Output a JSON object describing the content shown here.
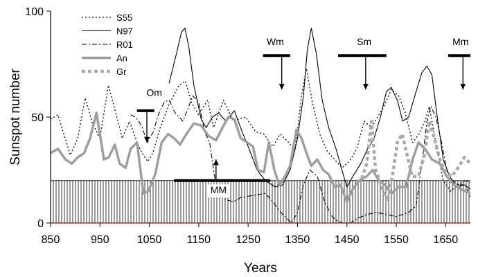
{
  "chart_data": {
    "type": "line",
    "xlabel": "Years",
    "ylabel": "Sunspot number",
    "xlim": [
      850,
      1700
    ],
    "ylim": [
      0,
      100
    ],
    "x_ticks": [
      850,
      950,
      1050,
      1150,
      1250,
      1350,
      1450,
      1550,
      1650
    ],
    "y_ticks": [
      0,
      50,
      100
    ],
    "legend_position": "top-left",
    "hatched_band": [
      0,
      20
    ],
    "series": [
      {
        "name": "S55",
        "style": "dotted",
        "color": "#000000",
        "points": [
          [
            850,
            49
          ],
          [
            865,
            51
          ],
          [
            878,
            41
          ],
          [
            890,
            32
          ],
          [
            905,
            40
          ],
          [
            920,
            59
          ],
          [
            935,
            47
          ],
          [
            950,
            40
          ],
          [
            967,
            65
          ],
          [
            982,
            52
          ],
          [
            995,
            40
          ],
          [
            1010,
            48
          ],
          [
            1025,
            38
          ],
          [
            1035,
            33
          ],
          [
            1047,
            29
          ],
          [
            1057,
            33
          ],
          [
            1072,
            45
          ],
          [
            1090,
            56
          ],
          [
            1110,
            65
          ],
          [
            1123,
            67
          ],
          [
            1135,
            57
          ],
          [
            1150,
            51
          ],
          [
            1168,
            58
          ],
          [
            1180,
            45
          ],
          [
            1200,
            58
          ],
          [
            1220,
            48
          ],
          [
            1245,
            50
          ],
          [
            1265,
            43
          ],
          [
            1282,
            42
          ],
          [
            1300,
            36
          ],
          [
            1315,
            42
          ],
          [
            1332,
            38
          ],
          [
            1345,
            34
          ],
          [
            1358,
            60
          ],
          [
            1368,
            73
          ],
          [
            1380,
            57
          ],
          [
            1395,
            42
          ],
          [
            1410,
            34
          ],
          [
            1425,
            30
          ],
          [
            1440,
            26
          ],
          [
            1455,
            29
          ],
          [
            1470,
            35
          ],
          [
            1485,
            48
          ],
          [
            1500,
            45
          ],
          [
            1512,
            50
          ],
          [
            1525,
            55
          ],
          [
            1540,
            63
          ],
          [
            1555,
            60
          ],
          [
            1568,
            52
          ],
          [
            1583,
            38
          ],
          [
            1596,
            42
          ],
          [
            1608,
            48
          ],
          [
            1617,
            55
          ],
          [
            1630,
            38
          ],
          [
            1645,
            20
          ],
          [
            1660,
            15
          ],
          [
            1675,
            18
          ],
          [
            1690,
            20
          ],
          [
            1700,
            19
          ]
        ]
      },
      {
        "name": "N97",
        "style": "solid",
        "color": "#000000",
        "points": [
          [
            1090,
            66
          ],
          [
            1105,
            80
          ],
          [
            1115,
            90
          ],
          [
            1122,
            92
          ],
          [
            1130,
            83
          ],
          [
            1140,
            65
          ],
          [
            1155,
            49
          ],
          [
            1165,
            45
          ],
          [
            1178,
            50
          ],
          [
            1190,
            52
          ],
          [
            1205,
            48
          ],
          [
            1222,
            53
          ],
          [
            1238,
            43
          ],
          [
            1252,
            35
          ],
          [
            1268,
            25
          ],
          [
            1285,
            20
          ],
          [
            1305,
            17
          ],
          [
            1320,
            18
          ],
          [
            1335,
            25
          ],
          [
            1350,
            40
          ],
          [
            1362,
            60
          ],
          [
            1370,
            82
          ],
          [
            1378,
            92
          ],
          [
            1388,
            80
          ],
          [
            1400,
            58
          ],
          [
            1413,
            45
          ],
          [
            1428,
            35
          ],
          [
            1440,
            25
          ],
          [
            1450,
            17
          ],
          [
            1462,
            22
          ],
          [
            1478,
            28
          ],
          [
            1492,
            35
          ],
          [
            1505,
            40
          ],
          [
            1518,
            50
          ],
          [
            1530,
            62
          ],
          [
            1540,
            64
          ],
          [
            1552,
            58
          ],
          [
            1563,
            48
          ],
          [
            1575,
            50
          ],
          [
            1590,
            62
          ],
          [
            1602,
            71
          ],
          [
            1612,
            74
          ],
          [
            1622,
            70
          ],
          [
            1633,
            50
          ],
          [
            1645,
            30
          ],
          [
            1658,
            22
          ],
          [
            1672,
            17
          ],
          [
            1688,
            18
          ],
          [
            1700,
            16
          ]
        ]
      },
      {
        "name": "R01",
        "style": "dashdot",
        "color": "#000000",
        "points": [
          [
            1012,
            51
          ],
          [
            1022,
            50
          ],
          [
            1034,
            46
          ],
          [
            1046,
            38
          ],
          [
            1058,
            43
          ],
          [
            1068,
            51
          ],
          [
            1080,
            57
          ],
          [
            1090,
            58
          ],
          [
            1102,
            52
          ],
          [
            1118,
            48
          ],
          [
            1128,
            54
          ],
          [
            1138,
            60
          ],
          [
            1150,
            57
          ],
          [
            1162,
            43
          ],
          [
            1172,
            38
          ],
          [
            1182,
            22
          ],
          [
            1192,
            14
          ],
          [
            1205,
            11
          ],
          [
            1220,
            10
          ],
          [
            1235,
            12
          ],
          [
            1260,
            13
          ],
          [
            1285,
            14
          ],
          [
            1300,
            10
          ],
          [
            1320,
            4
          ],
          [
            1338,
            0
          ],
          [
            1350,
            5
          ],
          [
            1362,
            18
          ],
          [
            1375,
            25
          ],
          [
            1390,
            22
          ],
          [
            1405,
            10
          ],
          [
            1420,
            3
          ],
          [
            1430,
            1
          ],
          [
            1442,
            0
          ],
          [
            1457,
            0
          ],
          [
            1470,
            2
          ],
          [
            1490,
            4
          ],
          [
            1510,
            5
          ],
          [
            1530,
            4
          ],
          [
            1550,
            3
          ],
          [
            1575,
            5
          ],
          [
            1590,
            8
          ],
          [
            1603,
            30
          ],
          [
            1612,
            48
          ],
          [
            1620,
            55
          ],
          [
            1630,
            50
          ],
          [
            1640,
            40
          ],
          [
            1652,
            25
          ],
          [
            1663,
            20
          ],
          [
            1675,
            18
          ],
          [
            1690,
            18
          ],
          [
            1700,
            12
          ]
        ]
      },
      {
        "name": "An",
        "style": "thick-solid",
        "color": "#9e9e9e",
        "points": [
          [
            850,
            33
          ],
          [
            865,
            35
          ],
          [
            880,
            30
          ],
          [
            893,
            28
          ],
          [
            905,
            31
          ],
          [
            918,
            33
          ],
          [
            930,
            40
          ],
          [
            943,
            52
          ],
          [
            958,
            30
          ],
          [
            968,
            31
          ],
          [
            980,
            37
          ],
          [
            990,
            28
          ],
          [
            1002,
            26
          ],
          [
            1012,
            35
          ],
          [
            1025,
            38
          ],
          [
            1038,
            14
          ],
          [
            1048,
            15
          ],
          [
            1062,
            23
          ],
          [
            1075,
            38
          ],
          [
            1088,
            42
          ],
          [
            1100,
            40
          ],
          [
            1112,
            37
          ],
          [
            1125,
            42
          ],
          [
            1140,
            47
          ],
          [
            1155,
            46
          ],
          [
            1170,
            41
          ],
          [
            1185,
            39
          ],
          [
            1198,
            45
          ],
          [
            1210,
            50
          ],
          [
            1222,
            49
          ],
          [
            1235,
            40
          ],
          [
            1248,
            38
          ],
          [
            1260,
            36
          ],
          [
            1270,
            25
          ],
          [
            1282,
            24
          ],
          [
            1292,
            38
          ],
          [
            1303,
            25
          ],
          [
            1313,
            18
          ],
          [
            1325,
            22
          ],
          [
            1335,
            27
          ],
          [
            1348,
            44
          ],
          [
            1358,
            40
          ],
          [
            1368,
            33
          ],
          [
            1378,
            27
          ],
          [
            1390,
            30
          ],
          [
            1402,
            25
          ],
          [
            1413,
            23
          ],
          [
            1425,
            17
          ],
          [
            1437,
            18
          ],
          [
            1450,
            10
          ],
          [
            1462,
            16
          ],
          [
            1475,
            20
          ],
          [
            1490,
            22
          ],
          [
            1502,
            25
          ],
          [
            1515,
            20
          ],
          [
            1527,
            18
          ],
          [
            1540,
            14
          ],
          [
            1555,
            17
          ],
          [
            1570,
            17
          ],
          [
            1583,
            30
          ],
          [
            1595,
            38
          ],
          [
            1608,
            35
          ],
          [
            1622,
            30
          ],
          [
            1638,
            28
          ],
          [
            1652,
            22
          ],
          [
            1667,
            18
          ],
          [
            1680,
            16
          ],
          [
            1700,
            14
          ]
        ]
      },
      {
        "name": "Gr",
        "style": "thick-dashed",
        "color": "#a9a9a9",
        "points": [
          [
            1480,
            21
          ],
          [
            1490,
            28
          ],
          [
            1500,
            48
          ],
          [
            1508,
            25
          ],
          [
            1515,
            21
          ],
          [
            1524,
            15
          ],
          [
            1532,
            10
          ],
          [
            1542,
            22
          ],
          [
            1552,
            38
          ],
          [
            1562,
            42
          ],
          [
            1572,
            32
          ],
          [
            1582,
            22
          ],
          [
            1595,
            22
          ],
          [
            1607,
            32
          ],
          [
            1617,
            48
          ],
          [
            1627,
            40
          ],
          [
            1638,
            30
          ],
          [
            1650,
            24
          ],
          [
            1662,
            22
          ],
          [
            1675,
            26
          ],
          [
            1688,
            31
          ],
          [
            1700,
            28
          ]
        ]
      }
    ],
    "annotations": [
      {
        "label": "Om",
        "bar": [
          1025,
          1060
        ],
        "bar_y": 53,
        "arrow": "down",
        "arrow_x": 1045,
        "arrow_from": 53,
        "arrow_to": 38,
        "label_at": [
          1060,
          60
        ]
      },
      {
        "label": "MM",
        "bar": [
          1100,
          1295
        ],
        "bar_y": 20,
        "arrow": "up",
        "arrow_x": 1185,
        "arrow_from": 20,
        "arrow_to": 30,
        "label_at": [
          1190,
          14
        ]
      },
      {
        "label": "Wm",
        "bar": [
          1280,
          1335
        ],
        "bar_y": 79,
        "arrow": "down",
        "arrow_x": 1318,
        "arrow_from": 79,
        "arrow_to": 63,
        "label_at": [
          1305,
          84
        ]
      },
      {
        "label": "Sm",
        "bar": [
          1432,
          1530
        ],
        "bar_y": 79,
        "arrow": "down",
        "arrow_x": 1488,
        "arrow_from": 79,
        "arrow_to": 63,
        "label_at": [
          1485,
          84
        ]
      },
      {
        "label": "Mm",
        "bar": [
          1655,
          1700
        ],
        "bar_y": 79,
        "arrow": "down",
        "arrow_x": 1685,
        "arrow_from": 79,
        "arrow_to": 63,
        "label_at": [
          1680,
          84
        ]
      }
    ]
  }
}
